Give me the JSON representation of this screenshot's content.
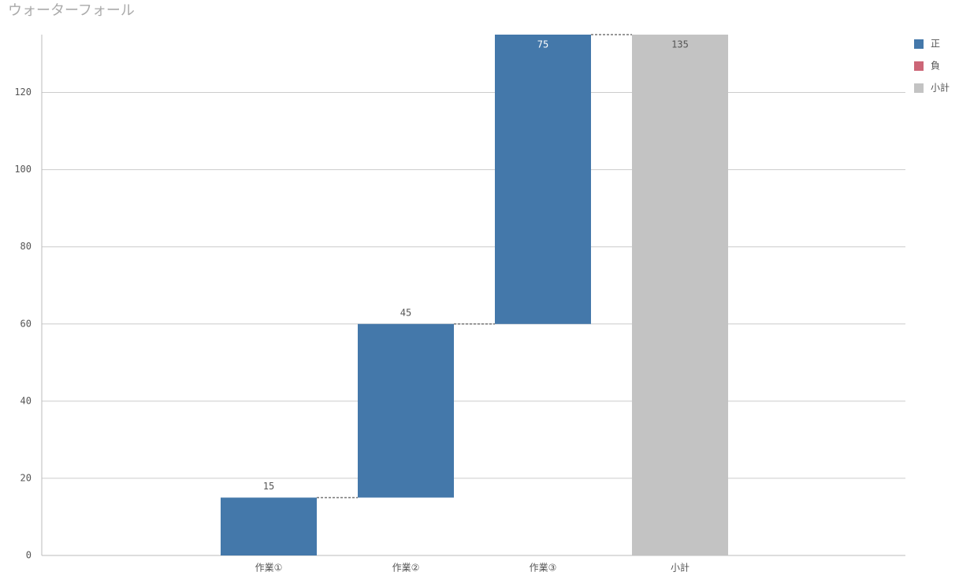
{
  "chart_data": {
    "type": "waterfall",
    "title": "ウォーターフォール",
    "categories": [
      "作業①",
      "作業②",
      "作業③",
      "小計"
    ],
    "series": [
      {
        "name": "正",
        "color": "#4478aa",
        "values": [
          15,
          45,
          75,
          null
        ]
      },
      {
        "name": "負",
        "color": "#cc6677",
        "values": [
          null,
          null,
          null,
          null
        ]
      },
      {
        "name": "小計",
        "color": "#c3c3c3",
        "values": [
          null,
          null,
          null,
          135
        ]
      }
    ],
    "ylim": [
      0,
      135
    ],
    "yticks": [
      0,
      20,
      40,
      60,
      80,
      100,
      120
    ],
    "grid": true
  }
}
